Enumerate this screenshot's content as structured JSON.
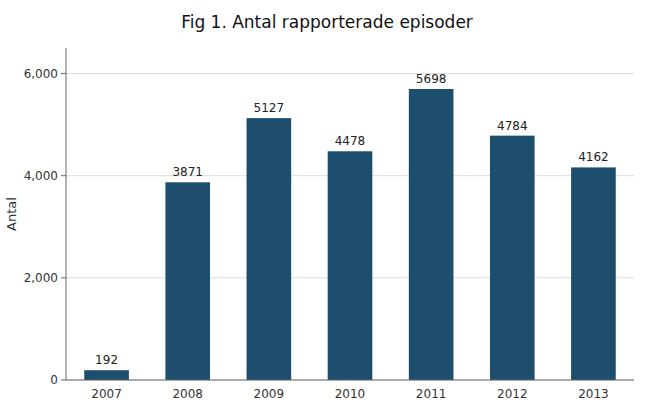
{
  "chart_data": {
    "type": "bar",
    "title": "Fig 1. Antal rapporterade episoder",
    "ylabel": "Antal",
    "categories": [
      "2007",
      "2008",
      "2009",
      "2010",
      "2011",
      "2012",
      "2013"
    ],
    "values": [
      192,
      3871,
      5127,
      4478,
      5698,
      4784,
      4162
    ],
    "color": "#1d4e6e",
    "ylim": [
      0,
      6500
    ],
    "yticks": [
      0,
      {
        "value": 2000,
        "label": "2,000"
      },
      {
        "value": 4000,
        "label": "4,000"
      },
      {
        "value": 6000,
        "label": "6,000"
      }
    ],
    "grid": true,
    "data_labels": true
  }
}
